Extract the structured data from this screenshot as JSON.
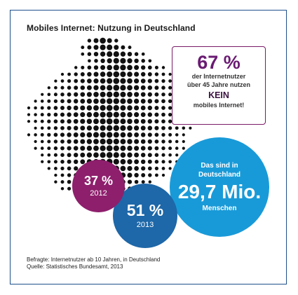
{
  "title": "Mobiles Internet: Nutzung in Deutschland",
  "callout": {
    "percent": "67 %",
    "line1": "der Internetnutzer",
    "line2": "über 45 Jahre nutzen",
    "emphasis": "KEIN",
    "line3": "mobiles Internet!"
  },
  "bubbles": {
    "y2012": {
      "value": "37 %",
      "year": "2012"
    },
    "y2013": {
      "value": "51 %",
      "year": "2013"
    },
    "population": {
      "line1": "Das sind in",
      "line2": "Deutschland",
      "value": "29,7 Mio.",
      "line3": "Menschen"
    }
  },
  "footer": {
    "line1": "Befragte: Internetnutzer ab 10 Jahren, in Deutschland",
    "line2": "Quelle: Statistisches Bundesamt, 2013"
  },
  "colors": {
    "frame": "#1d4f8c",
    "purple": "#8e1f6c",
    "blue_dark": "#1e67a8",
    "blue_light": "#199ad8",
    "map_dots": "#111111"
  },
  "chart_data": {
    "type": "bubble",
    "title": "Mobiles Internet: Nutzung in Deutschland",
    "categories": [
      "2012",
      "2013"
    ],
    "values": [
      37,
      51
    ],
    "unit": "%",
    "annotations": [
      {
        "value": 67,
        "unit": "%",
        "text": "der Internetnutzer über 45 Jahre nutzen KEIN mobiles Internet!"
      },
      {
        "value": 29.7,
        "unit": "Mio.",
        "text": "Das sind in Deutschland 29,7 Mio. Menschen"
      }
    ]
  }
}
